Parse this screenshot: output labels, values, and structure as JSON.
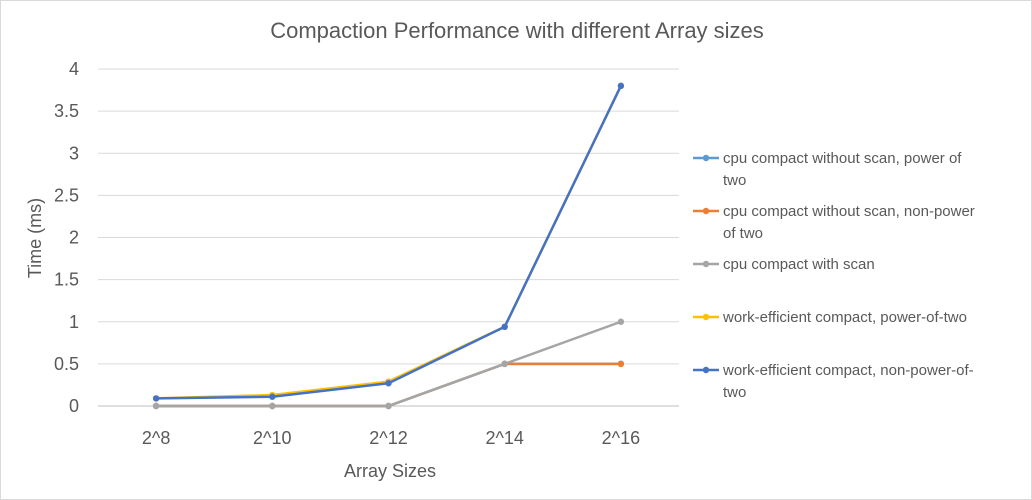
{
  "chart_data": {
    "type": "line",
    "title": "Compaction Performance with different Array sizes",
    "xlabel": "Array Sizes",
    "ylabel": "Time (ms)",
    "categories": [
      "2^8",
      "2^10",
      "2^12",
      "2^14",
      "2^16"
    ],
    "ylim": [
      0,
      4
    ],
    "yticks": [
      "0",
      "0.5",
      "1",
      "1.5",
      "2",
      "2.5",
      "3",
      "3.5",
      "4"
    ],
    "grid": true,
    "legend_position": "right",
    "series": [
      {
        "name": "cpu compact without scan, power of two",
        "color": "#5b9bd5",
        "values": [
          0,
          0,
          0,
          0.5,
          0.5
        ]
      },
      {
        "name": "cpu compact without scan, non-power of two",
        "color": "#ed7d31",
        "values": [
          0,
          0,
          0,
          0.5,
          0.5
        ]
      },
      {
        "name": "cpu compact with scan",
        "color": "#a5a5a5",
        "values": [
          0,
          0,
          0,
          0.5,
          1.0
        ]
      },
      {
        "name": "work-efficient compact, power-of-two",
        "color": "#ffc000",
        "values": [
          0.09,
          0.13,
          0.29,
          0.94,
          3.8
        ]
      },
      {
        "name": "work-efficient compact, non-power-of-two",
        "color": "#4472c4",
        "values": [
          0.09,
          0.11,
          0.27,
          0.94,
          3.8
        ]
      }
    ]
  }
}
